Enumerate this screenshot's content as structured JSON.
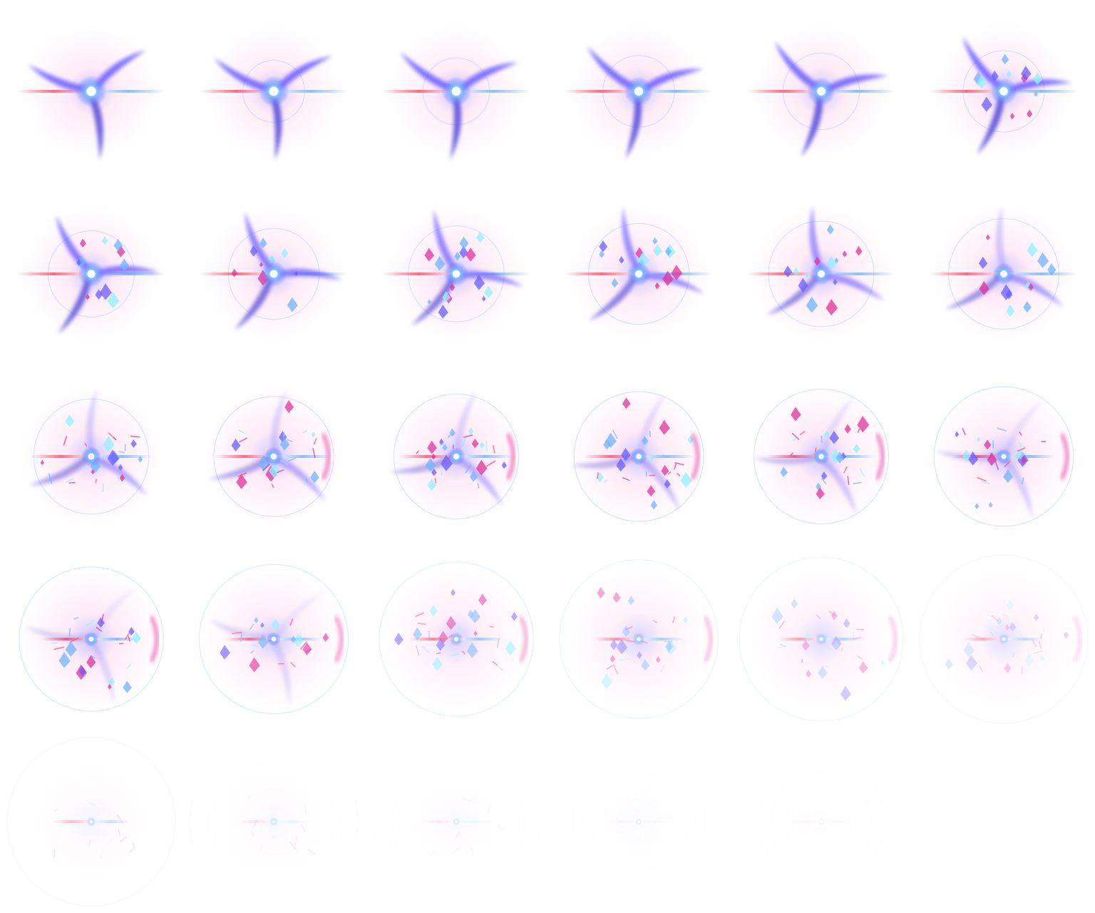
{
  "sheet": {
    "columns": 6,
    "rows": 5,
    "frame_count": 29
  },
  "colors": {
    "background": "#ffffff",
    "core": "#ffffff",
    "violet": "#6a5cff",
    "indigo": "#5548d8",
    "blue": "#6fb4ff",
    "magenta": "#e0309a",
    "pink_glow": "#ffc8e6",
    "cyan": "#8ff0ff",
    "red_streak": "#ff4d6d"
  },
  "frames": [
    {
      "n": 1,
      "phase": "flash"
    },
    {
      "n": 2,
      "phase": "flash"
    },
    {
      "n": 3,
      "phase": "flash"
    },
    {
      "n": 4,
      "phase": "flash"
    },
    {
      "n": 5,
      "phase": "flash"
    },
    {
      "n": 6,
      "phase": "flash"
    },
    {
      "n": 7,
      "phase": "burst"
    },
    {
      "n": 8,
      "phase": "burst"
    },
    {
      "n": 9,
      "phase": "burst"
    },
    {
      "n": 10,
      "phase": "burst"
    },
    {
      "n": 11,
      "phase": "burst"
    },
    {
      "n": 12,
      "phase": "burst"
    },
    {
      "n": 13,
      "phase": "shatter"
    },
    {
      "n": 14,
      "phase": "shatter"
    },
    {
      "n": 15,
      "phase": "shatter"
    },
    {
      "n": 16,
      "phase": "shatter"
    },
    {
      "n": 17,
      "phase": "shatter"
    },
    {
      "n": 18,
      "phase": "shatter"
    },
    {
      "n": 19,
      "phase": "dissipate"
    },
    {
      "n": 20,
      "phase": "dissipate"
    },
    {
      "n": 21,
      "phase": "dissipate"
    },
    {
      "n": 22,
      "phase": "dissipate"
    },
    {
      "n": 23,
      "phase": "dissipate"
    },
    {
      "n": 24,
      "phase": "dissipate"
    },
    {
      "n": 25,
      "phase": "fade"
    },
    {
      "n": 26,
      "phase": "fade"
    },
    {
      "n": 27,
      "phase": "fade"
    },
    {
      "n": 28,
      "phase": "fade"
    },
    {
      "n": 29,
      "phase": "fade"
    }
  ]
}
